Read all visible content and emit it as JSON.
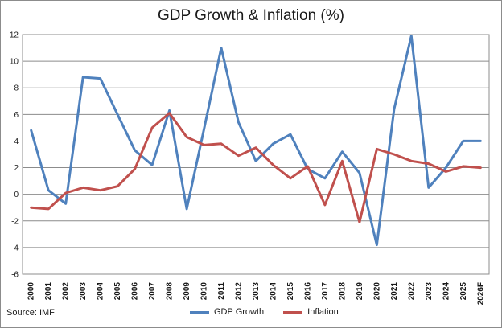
{
  "chart_data": {
    "type": "line",
    "title": "GDP Growth & Inflation (%)",
    "xlabel": "",
    "ylabel": "",
    "ylim": [
      -6,
      12
    ],
    "yticks": [
      12,
      10,
      8,
      6,
      4,
      2,
      0,
      -2,
      -4,
      -6
    ],
    "categories": [
      "2000",
      "2001",
      "2002",
      "2003",
      "2004",
      "2005",
      "2006",
      "2007",
      "2008",
      "2009",
      "2010",
      "2011",
      "2012",
      "2013",
      "2014",
      "2015",
      "2016",
      "2017",
      "2018",
      "2019",
      "2020",
      "2021",
      "2022",
      "2023",
      "2024",
      "2025",
      "2026F"
    ],
    "series": [
      {
        "name": "GDP Growth",
        "color": "#4f81bd",
        "values": [
          4.8,
          0.3,
          -0.7,
          8.8,
          8.7,
          6.0,
          3.3,
          2.2,
          6.3,
          -1.1,
          4.9,
          11.0,
          5.4,
          2.5,
          3.8,
          4.5,
          1.9,
          1.2,
          3.2,
          1.6,
          -3.8,
          6.4,
          11.9,
          0.5,
          2.0,
          4.0,
          4.0
        ]
      },
      {
        "name": "Inflation",
        "color": "#c0504d",
        "values": [
          -1.0,
          -1.1,
          0.1,
          0.5,
          0.3,
          0.6,
          1.9,
          5.0,
          6.1,
          4.3,
          3.7,
          3.8,
          2.9,
          3.5,
          2.2,
          1.2,
          2.1,
          -0.8,
          2.5,
          -2.1,
          3.4,
          3.0,
          2.5,
          2.3,
          1.7,
          2.1,
          2.0
        ]
      }
    ],
    "grid": true,
    "legend_position": "bottom"
  },
  "source": "Source: IMF"
}
